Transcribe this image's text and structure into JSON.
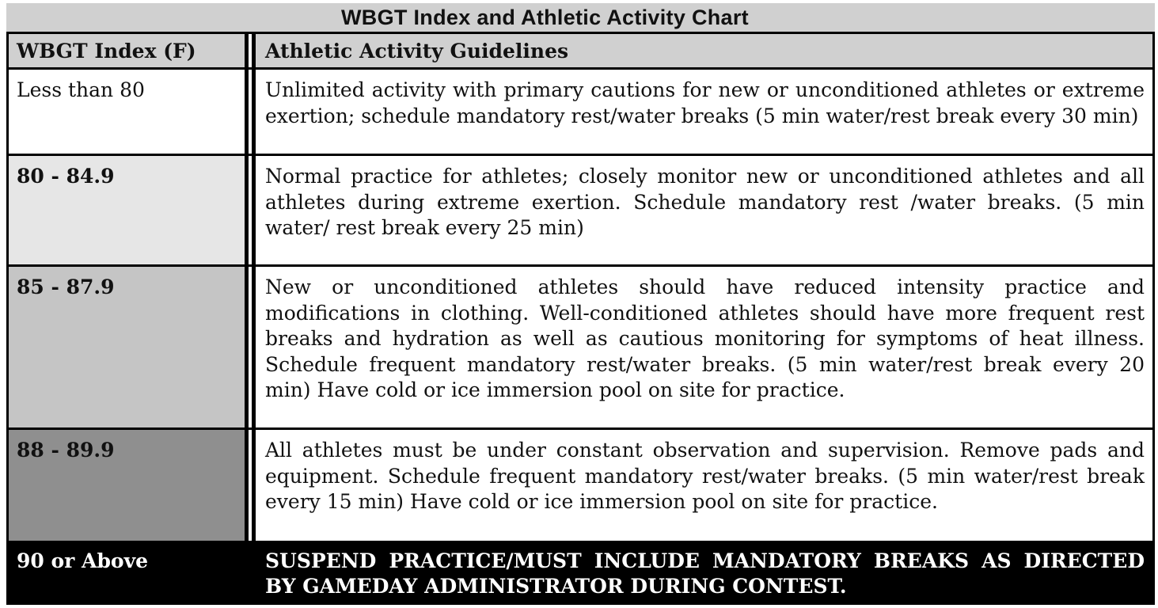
{
  "title": "WBGT Index and Athletic Activity Chart",
  "header": {
    "index_label": "WBGT Index (F)",
    "guidelines_label": "Athletic Activity Guidelines"
  },
  "rows": [
    {
      "index": "Less than 80",
      "guideline": "Unlimited activity with primary cautions for new or unconditioned athletes or extreme exertion; schedule mandatory rest/water breaks (5 min water/rest break every 30 min)",
      "shade": "#ffffff"
    },
    {
      "index": "80 - 84.9",
      "guideline": "Normal practice for athletes; closely monitor new or unconditioned athletes and all athletes during extreme exertion.  Schedule mandatory rest  /water breaks. (5 min water/ rest break every 25 min)",
      "shade": "#e6e6e6"
    },
    {
      "index": "85 - 87.9",
      "guideline": "New or unconditioned athletes should have reduced intensity practice and modifications in clothing. Well-conditioned athletes should have more frequent rest breaks and hydration as well as cautious monitoring for symptoms of heat illness.  Schedule frequent mandatory rest/water breaks. (5 min water/rest break every 20 min)  Have cold or ice immersion pool on site for practice.",
      "shade": "#c5c5c5"
    },
    {
      "index": "88 - 89.9",
      "guideline": "All athletes must be under constant observation and supervision. Remove pads and equipment. Schedule frequent mandatory rest/water breaks. (5 min water/rest break every 15 min)  Have cold or ice immersion pool on site for practice.",
      "shade": "#8f8f8f"
    },
    {
      "index": "90 or Above",
      "guideline": "SUSPEND PRACTICE/MUST INCLUDE MANDATORY BREAKS AS DIRECTED BY GAMEDAY ADMINISTRATOR DURING CONTEST.",
      "shade": "#000000"
    }
  ]
}
